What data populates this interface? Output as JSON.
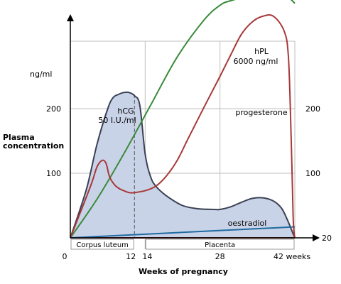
{
  "chart_data": {
    "type": "line",
    "xlabel": "Weeks of pregnancy",
    "ylabel": "Plasma concentration",
    "y_unit": "ng/ml",
    "xlim": [
      0,
      42
    ],
    "ylim": [
      0,
      300
    ],
    "x_ticks": [
      {
        "value": 0,
        "label": "0"
      },
      {
        "value": 12,
        "label": "12"
      },
      {
        "value": 14,
        "label": "14"
      },
      {
        "value": 28,
        "label": "28"
      },
      {
        "value": 42,
        "label": "42 weeks"
      }
    ],
    "y_ticks_left": [
      {
        "value": 100,
        "label": "100"
      },
      {
        "value": 200,
        "label": "200"
      }
    ],
    "y_ticks_right": [
      {
        "value": 100,
        "label": "100"
      },
      {
        "value": 200,
        "label": "200"
      }
    ],
    "right_axis_label": "20",
    "grid": true,
    "phases": [
      {
        "label": "Corpus luteum",
        "x_start": 0,
        "x_end": 12
      },
      {
        "label": "Placenta",
        "x_start": 14,
        "x_end": 42
      }
    ],
    "series": [
      {
        "name": "hCG",
        "annotation": "50 I.U./ml",
        "color": "#3b4154",
        "fill": "#c9d3e8",
        "x": [
          0,
          3,
          5,
          7,
          8,
          9,
          10,
          11,
          12,
          13,
          14,
          15,
          16,
          18,
          21,
          24,
          27,
          28,
          30,
          32,
          34,
          36,
          38,
          39.5,
          40.5,
          41.5,
          42
        ],
        "y": [
          0,
          75,
          145,
          200,
          217,
          222,
          225,
          225,
          220,
          205,
          130,
          95,
          80,
          65,
          50,
          45,
          44,
          44,
          48,
          55,
          61,
          62,
          57,
          46,
          30,
          10,
          0
        ]
      },
      {
        "name": "hPL",
        "annotation": "6000 ng/ml",
        "color": "#3a8a3a",
        "x": [
          0,
          5,
          10,
          15,
          20,
          25,
          28,
          30,
          33,
          36,
          39,
          41,
          42
        ],
        "y": [
          0,
          60,
          130,
          205,
          280,
          337,
          360,
          367,
          373,
          375,
          373,
          370,
          363
        ]
      },
      {
        "name": "progesterone",
        "color": "#a83838",
        "x": [
          0,
          2,
          4,
          5,
          6,
          6.7,
          7.2,
          7.6,
          8.3,
          9,
          10,
          11,
          12,
          14,
          16,
          18,
          20,
          22,
          25,
          28,
          30,
          32,
          34,
          36,
          38,
          40,
          40.8,
          41.3,
          41.7,
          42
        ],
        "y": [
          0,
          42,
          85,
          110,
          120,
          115,
          98,
          90,
          82,
          77,
          73,
          70,
          70,
          73,
          80,
          96,
          120,
          153,
          202,
          250,
          283,
          315,
          334,
          343,
          343,
          320,
          280,
          160,
          30,
          0
        ]
      },
      {
        "name": "oestradiol",
        "color": "#1f6aa0",
        "x": [
          0,
          42
        ],
        "y": [
          0,
          17
        ]
      }
    ]
  }
}
